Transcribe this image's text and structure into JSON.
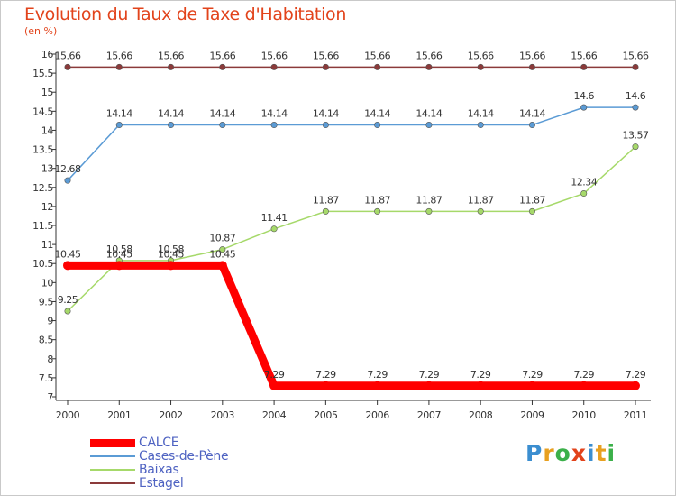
{
  "header": {
    "title": "Evolution du Taux de Taxe d'Habitation",
    "unit": "(en %)"
  },
  "logo": {
    "letters": [
      {
        "char": "P",
        "color": "#3b8ed0"
      },
      {
        "char": "r",
        "color": "#e8a020"
      },
      {
        "char": "o",
        "color": "#3bb04a"
      },
      {
        "char": "x",
        "color": "#e2431b"
      },
      {
        "char": "i",
        "color": "#3b8ed0"
      },
      {
        "char": "t",
        "color": "#e8a020"
      },
      {
        "char": "i",
        "color": "#3bb04a"
      }
    ]
  },
  "chart_data": {
    "type": "line",
    "x": [
      "2000",
      "2001",
      "2002",
      "2003",
      "2004",
      "2005",
      "2006",
      "2007",
      "2008",
      "2009",
      "2010",
      "2011"
    ],
    "ylim": [
      7,
      16
    ],
    "yticks": [
      "7",
      "7.5",
      "8",
      "8.5",
      "9",
      "9.5",
      "10",
      "10.5",
      "11",
      "11.5",
      "12",
      "12.5",
      "13",
      "13.5",
      "14",
      "14.5",
      "15",
      "15.5",
      "16"
    ],
    "grid": false,
    "legend_position": "bottom-left",
    "series": [
      {
        "name": "CALCE",
        "color": "#ff0000",
        "values": [
          10.45,
          10.45,
          10.45,
          10.45,
          7.29,
          7.29,
          7.29,
          7.29,
          7.29,
          7.29,
          7.29,
          7.29
        ],
        "labels": [
          "10.45",
          "10.45",
          "10.45",
          "10.45",
          "7.29",
          "7.29",
          "7.29",
          "7.29",
          "7.29",
          "7.29",
          "7.29",
          "7.29"
        ]
      },
      {
        "name": "Cases-de-Pène",
        "color": "#5b9bd5",
        "values": [
          12.68,
          14.14,
          14.14,
          14.14,
          14.14,
          14.14,
          14.14,
          14.14,
          14.14,
          14.14,
          14.6,
          14.6
        ],
        "labels": [
          "12.68",
          "14.14",
          "14.14",
          "14.14",
          "14.14",
          "14.14",
          "14.14",
          "14.14",
          "14.14",
          "14.14",
          "14.6",
          "14.6"
        ]
      },
      {
        "name": "Baixas",
        "color": "#a6d96a",
        "values": [
          9.25,
          10.58,
          10.58,
          10.87,
          11.41,
          11.87,
          11.87,
          11.87,
          11.87,
          11.87,
          12.34,
          13.57
        ],
        "labels": [
          "9.25",
          "10.58",
          "10.58",
          "10.87",
          "11.41",
          "11.87",
          "11.87",
          "11.87",
          "11.87",
          "11.87",
          "12.34",
          "13.57"
        ]
      },
      {
        "name": "Estagel",
        "color": "#8b3a3a",
        "values": [
          15.66,
          15.66,
          15.66,
          15.66,
          15.66,
          15.66,
          15.66,
          15.66,
          15.66,
          15.66,
          15.66,
          15.66
        ],
        "labels": [
          "15.66",
          "15.66",
          "15.66",
          "15.66",
          "15.66",
          "15.66",
          "15.66",
          "15.66",
          "15.66",
          "15.66",
          "15.66",
          "15.66"
        ]
      }
    ]
  }
}
